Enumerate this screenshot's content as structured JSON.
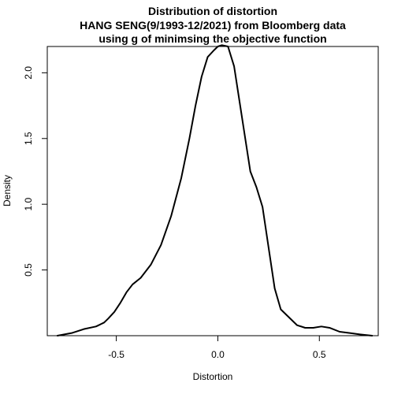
{
  "chart_data": {
    "type": "line",
    "title_lines": [
      "Distribution of distortion",
      "HANG SENG(9/1993-12/2021) from Bloomberg data",
      "using g of minimsing the objective function"
    ],
    "xlabel": "Distortion",
    "ylabel": "Density",
    "xlim": [
      -0.84,
      0.79
    ],
    "ylim": [
      0.0,
      2.2
    ],
    "x_ticks": [
      -0.5,
      0.0,
      0.5
    ],
    "x_tick_labels": [
      "-0.5",
      "0.0",
      "0.5"
    ],
    "y_ticks": [
      0.5,
      1.0,
      1.5,
      2.0
    ],
    "y_tick_labels": [
      "0.5",
      "1.0",
      "1.5",
      "2.0"
    ],
    "grid": false,
    "legend": "none",
    "line_color": "#000000",
    "series": [
      {
        "x": [
          -0.79,
          -0.72,
          -0.66,
          -0.6,
          -0.56,
          -0.54,
          -0.51,
          -0.48,
          -0.45,
          -0.42,
          -0.38,
          -0.33,
          -0.28,
          -0.23,
          -0.18,
          -0.14,
          -0.11,
          -0.08,
          -0.05,
          -0.02,
          0.0,
          0.02,
          0.05,
          0.08,
          0.11,
          0.14,
          0.16,
          0.19,
          0.22,
          0.25,
          0.28,
          0.31,
          0.35,
          0.39,
          0.43,
          0.47,
          0.51,
          0.55,
          0.6,
          0.65,
          0.7,
          0.76
        ],
        "y": [
          0.0,
          0.02,
          0.05,
          0.07,
          0.1,
          0.13,
          0.18,
          0.25,
          0.33,
          0.39,
          0.44,
          0.54,
          0.69,
          0.91,
          1.2,
          1.5,
          1.75,
          1.97,
          2.12,
          2.17,
          2.2,
          2.21,
          2.2,
          2.05,
          1.75,
          1.45,
          1.25,
          1.13,
          0.98,
          0.67,
          0.36,
          0.2,
          0.14,
          0.08,
          0.06,
          0.06,
          0.07,
          0.06,
          0.03,
          0.02,
          0.01,
          0.0
        ]
      }
    ]
  }
}
